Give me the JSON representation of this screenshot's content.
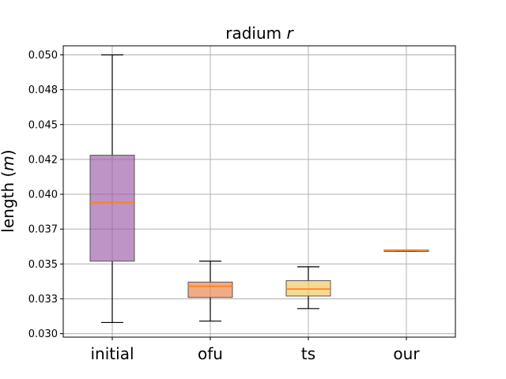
{
  "chart_data": {
    "type": "box",
    "title": "radium",
    "title_var": "r",
    "ylabel": "length",
    "ylabel_unit": "m",
    "ylim": [
      0.02975,
      0.05065
    ],
    "yticks": [
      0.03,
      0.0325,
      0.035,
      0.0375,
      0.04,
      0.0425,
      0.045,
      0.0475,
      0.05
    ],
    "ytick_labels": [
      "0.030",
      "0.033",
      "0.035",
      "0.037",
      "0.040",
      "0.042",
      "0.045",
      "0.048",
      "0.050"
    ],
    "grid": true,
    "categories": [
      "initial",
      "ofu",
      "ts",
      "our"
    ],
    "boxes": [
      {
        "category": "initial",
        "whislo": 0.0308,
        "q1": 0.0352,
        "median": 0.0394,
        "q3": 0.0428,
        "whishi": 0.05,
        "color": "#9b59a6"
      },
      {
        "category": "ofu",
        "whislo": 0.0309,
        "q1": 0.0326,
        "median": 0.0334,
        "q3": 0.0337,
        "whishi": 0.0352,
        "color": "#e8804a"
      },
      {
        "category": "ts",
        "whislo": 0.0318,
        "q1": 0.0327,
        "median": 0.0332,
        "q3": 0.0338,
        "whishi": 0.0348,
        "color": "#f5c45a"
      },
      {
        "category": "our",
        "whislo": 0.0359,
        "q1": 0.0359,
        "median": 0.036,
        "q3": 0.036,
        "whishi": 0.036,
        "color": "#e8804a"
      }
    ],
    "median_color": "#ff7f0e"
  }
}
